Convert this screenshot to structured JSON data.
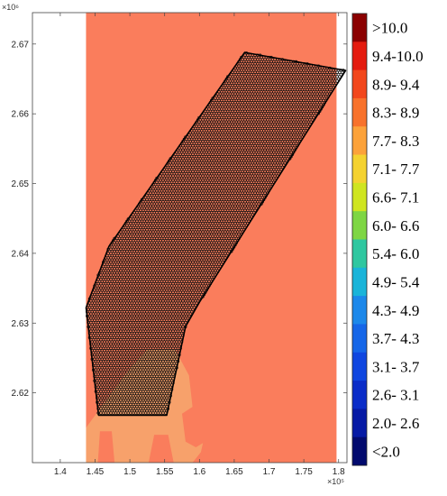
{
  "chart_data": {
    "type": "heatmap",
    "title": "",
    "xlabel": "",
    "ylabel": "",
    "x_exponent_label": "×10⁵",
    "y_exponent_label": "×10⁶",
    "xlim": [
      1.36,
      1.812
    ],
    "ylim": [
      2.61,
      2.6745
    ],
    "x_ticks": [
      {
        "value": 1.4,
        "label": "1.4"
      },
      {
        "value": 1.45,
        "label": "1.45"
      },
      {
        "value": 1.5,
        "label": "1.5"
      },
      {
        "value": 1.55,
        "label": "1.55"
      },
      {
        "value": 1.6,
        "label": "1.6"
      },
      {
        "value": 1.65,
        "label": "1.65"
      },
      {
        "value": 1.7,
        "label": "1.7"
      },
      {
        "value": 1.75,
        "label": "1.75"
      },
      {
        "value": 1.8,
        "label": "1.8"
      }
    ],
    "y_ticks": [
      {
        "value": 2.62,
        "label": "2.62"
      },
      {
        "value": 2.63,
        "label": "2.63"
      },
      {
        "value": 2.64,
        "label": "2.64"
      },
      {
        "value": 2.65,
        "label": "2.65"
      },
      {
        "value": 2.66,
        "label": "2.66"
      },
      {
        "value": 2.67,
        "label": "2.67"
      }
    ],
    "field_extent_x": [
      1.437,
      1.797
    ],
    "background_color": "#fa7d5c",
    "lower_region_color": "#f7a36c",
    "polygon": [
      [
        1.455,
        2.6168
      ],
      [
        1.553,
        2.6168
      ],
      [
        1.58,
        2.6295
      ],
      [
        1.6,
        2.633
      ],
      [
        1.81,
        2.6662
      ],
      [
        1.665,
        2.6688
      ],
      [
        1.47,
        2.641
      ],
      [
        1.437,
        2.6322
      ]
    ],
    "grid_spacing": 0.0065,
    "colorbar": {
      "entries": [
        {
          "label": ">10.0",
          "color": "#8b0000"
        },
        {
          "label": "9.4-10.0",
          "color": "#e41b0f"
        },
        {
          "label": "8.9- 9.4",
          "color": "#f2471c"
        },
        {
          "label": "8.3- 8.9",
          "color": "#f8722b"
        },
        {
          "label": "7.7- 8.3",
          "color": "#fca23a"
        },
        {
          "label": "7.1- 7.7",
          "color": "#f4d230"
        },
        {
          "label": "6.6- 7.1",
          "color": "#cfe520"
        },
        {
          "label": "6.0- 6.6",
          "color": "#7ed644"
        },
        {
          "label": "5.4- 6.0",
          "color": "#2fc7a0"
        },
        {
          "label": "4.9- 5.4",
          "color": "#1ab4d9"
        },
        {
          "label": "4.3- 4.9",
          "color": "#1c88ea"
        },
        {
          "label": "3.7- 4.3",
          "color": "#1566e8"
        },
        {
          "label": "3.1- 3.7",
          "color": "#0f46e0"
        },
        {
          "label": "2.6- 3.1",
          "color": "#0a2cc8"
        },
        {
          "label": "2.0- 2.6",
          "color": "#061aa5"
        },
        {
          "label": "<2.0",
          "color": "#020a6e"
        }
      ]
    }
  }
}
